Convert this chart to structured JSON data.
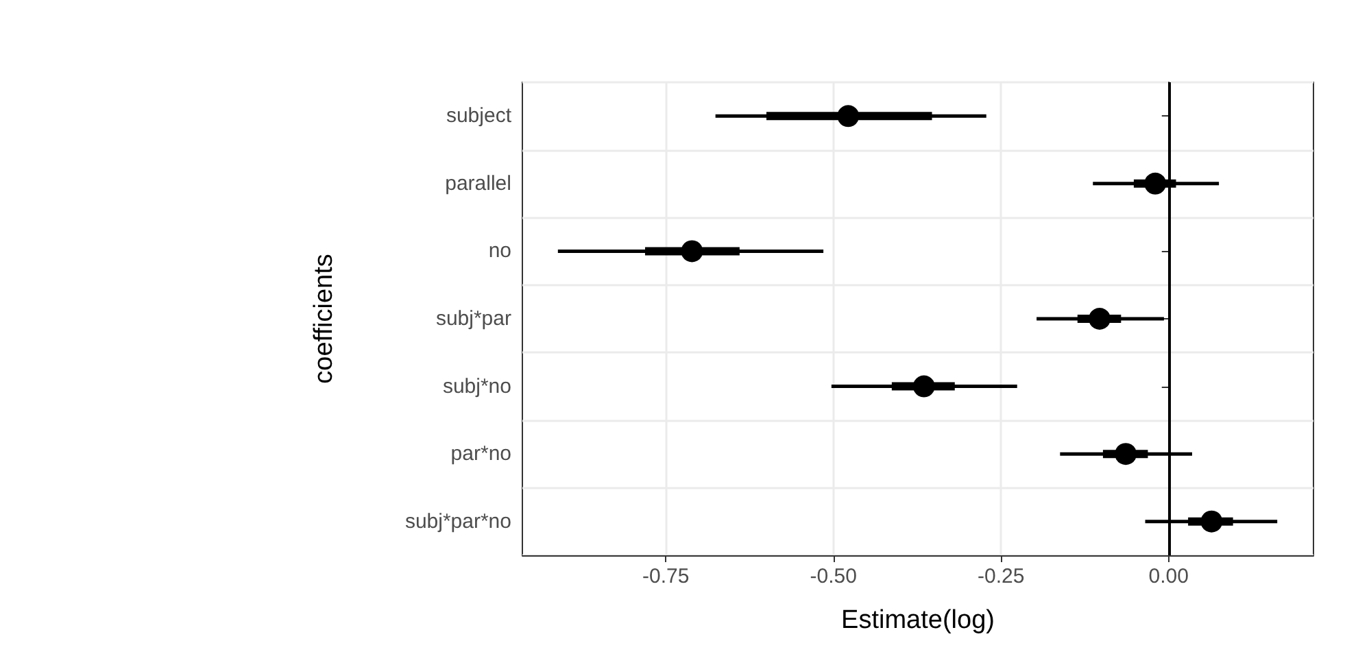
{
  "chart_data": {
    "type": "box",
    "orientation": "horizontal",
    "xlabel": "Estimate(log)",
    "ylabel": "coefficients",
    "categories": [
      "subject",
      "parallel",
      "no",
      "subj*par",
      "subj*no",
      "par*no",
      "subj*par*no"
    ],
    "color": "#000000",
    "boxes": [
      {
        "low": -0.676,
        "q1": -0.6,
        "median": -0.478,
        "q3": -0.353,
        "high": -0.272
      },
      {
        "low": -0.113,
        "q1": -0.052,
        "median": -0.02,
        "q3": 0.011,
        "high": 0.075
      },
      {
        "low": -0.911,
        "q1": -0.781,
        "median": -0.711,
        "q3": -0.64,
        "high": -0.515
      },
      {
        "low": -0.197,
        "q1": -0.136,
        "median": -0.103,
        "q3": -0.071,
        "high": -0.007
      },
      {
        "low": -0.503,
        "q1": -0.413,
        "median": -0.365,
        "q3": -0.319,
        "high": -0.226
      },
      {
        "low": -0.162,
        "q1": -0.098,
        "median": -0.064,
        "q3": -0.031,
        "high": 0.035
      },
      {
        "low": -0.035,
        "q1": 0.029,
        "median": 0.064,
        "q3": 0.096,
        "high": 0.162
      }
    ],
    "xlim": [
      -0.964,
      0.216
    ],
    "xticks": [
      {
        "value": -0.75,
        "label": "-0.75"
      },
      {
        "value": -0.5,
        "label": "-0.50"
      },
      {
        "value": -0.25,
        "label": "-0.25"
      },
      {
        "value": 0,
        "label": "0.00"
      }
    ],
    "ref_lines": [
      {
        "axis": "x",
        "value": 0,
        "color": "#000000"
      }
    ],
    "grid": true
  }
}
